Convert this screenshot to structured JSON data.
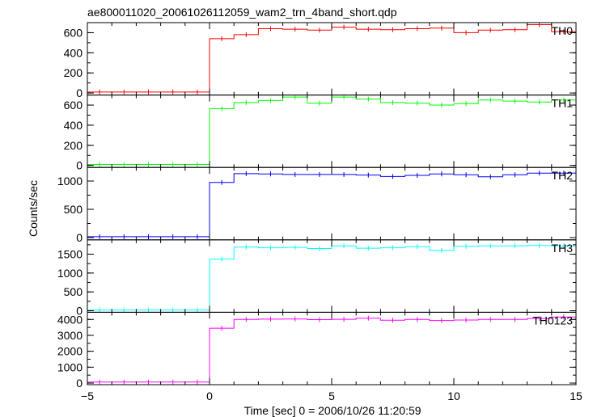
{
  "chart_data": {
    "type": "line",
    "title": "ae800011020_20061026112059_wam2_trn_4band_short.qdp",
    "xlabel": "Time [sec] 0 = 2006/10/26 11:20:59",
    "ylabel": "Counts/sec",
    "xlim": [
      -5,
      15
    ],
    "x_ticks": [
      "−5",
      "0",
      "5",
      "10",
      "15"
    ],
    "x_tick_values": [
      -5,
      0,
      5,
      10,
      15
    ],
    "bin_edges": [
      -5,
      -4,
      -3,
      -2,
      -1,
      0,
      1,
      2,
      3,
      4,
      5,
      6,
      7,
      8,
      9,
      10,
      11,
      12,
      13,
      14,
      15
    ],
    "panels": [
      {
        "name": "TH0",
        "color": "#ff0000",
        "ylim": [
          -20,
          700
        ],
        "y_ticks": [
          "0",
          "200",
          "400",
          "600"
        ],
        "y_tick_values": [
          0,
          200,
          400,
          600
        ],
        "values": [
          10,
          10,
          10,
          10,
          10,
          540,
          580,
          640,
          635,
          625,
          655,
          635,
          630,
          640,
          645,
          600,
          625,
          630,
          680,
          610
        ]
      },
      {
        "name": "TH1",
        "color": "#00ff00",
        "ylim": [
          -20,
          700
        ],
        "y_ticks": [
          "0",
          "200",
          "400",
          "600"
        ],
        "y_tick_values": [
          0,
          200,
          400,
          600
        ],
        "values": [
          10,
          10,
          10,
          10,
          10,
          565,
          625,
          645,
          680,
          620,
          680,
          660,
          625,
          620,
          600,
          615,
          650,
          640,
          630,
          650
        ]
      },
      {
        "name": "TH2",
        "color": "#0000ff",
        "ylim": [
          -40,
          1240
        ],
        "y_ticks": [
          "0",
          "500",
          "1000"
        ],
        "y_tick_values": [
          0,
          500,
          1000
        ],
        "values": [
          15,
          15,
          15,
          15,
          15,
          975,
          1130,
          1125,
          1115,
          1115,
          1115,
          1105,
          1080,
          1100,
          1125,
          1110,
          1075,
          1110,
          1140,
          1140
        ]
      },
      {
        "name": "TH3",
        "color": "#00ffff",
        "ylim": [
          -40,
          1880
        ],
        "y_ticks": [
          "0",
          "500",
          "1000",
          "1500"
        ],
        "y_tick_values": [
          0,
          500,
          1000,
          1500
        ],
        "values": [
          20,
          20,
          20,
          20,
          20,
          1370,
          1690,
          1670,
          1680,
          1650,
          1720,
          1660,
          1670,
          1700,
          1600,
          1710,
          1720,
          1720,
          1730,
          1720
        ]
      },
      {
        "name": "TH0123",
        "color": "#ff00ff",
        "ylim": [
          -100,
          4450
        ],
        "y_ticks": [
          "0",
          "1000",
          "2000",
          "3000",
          "4000"
        ],
        "y_tick_values": [
          0,
          1000,
          2000,
          3000,
          4000
        ],
        "values": [
          60,
          60,
          60,
          60,
          60,
          3450,
          4000,
          4020,
          4030,
          3990,
          4010,
          4080,
          3950,
          4000,
          3930,
          3960,
          4000,
          4000,
          4060,
          4150
        ]
      }
    ]
  }
}
